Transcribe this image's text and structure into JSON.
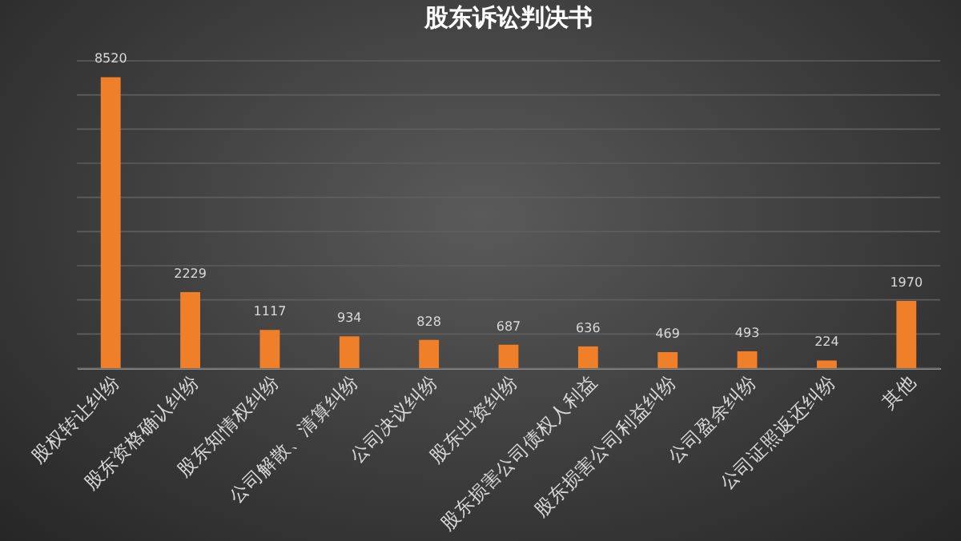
{
  "chart_data": {
    "type": "bar",
    "title": "股东诉讼判决书",
    "categories": [
      "股权转让纠纷",
      "股东资格确认纠纷",
      "股东知情权纠纷",
      "公司解散、清算纠纷",
      "公司决议纠纷",
      "股东出资纠纷",
      "股东损害公司债权人利益",
      "股东损害公司利益纠纷",
      "公司盈余纠纷",
      "公司证照返还纠纷",
      "其他"
    ],
    "values": [
      8520,
      2229,
      1117,
      934,
      828,
      687,
      636,
      469,
      493,
      224,
      1970
    ],
    "color": "#f07f2a",
    "ylim": [
      0,
      9000
    ],
    "yticks": [
      {
        "value": 0,
        "label": null
      },
      {
        "value": 1000,
        "label": null
      },
      {
        "value": 2000,
        "label": null
      },
      {
        "value": 3000,
        "label": null
      },
      {
        "value": 4000,
        "label": null
      },
      {
        "value": 5000,
        "label": null
      },
      {
        "value": 6000,
        "label": null
      },
      {
        "value": 7000,
        "label": null
      },
      {
        "value": 8000,
        "label": null
      },
      {
        "value": 9000,
        "label": null
      }
    ],
    "grid": "y",
    "tick_labels": "x",
    "data_labels": true
  }
}
